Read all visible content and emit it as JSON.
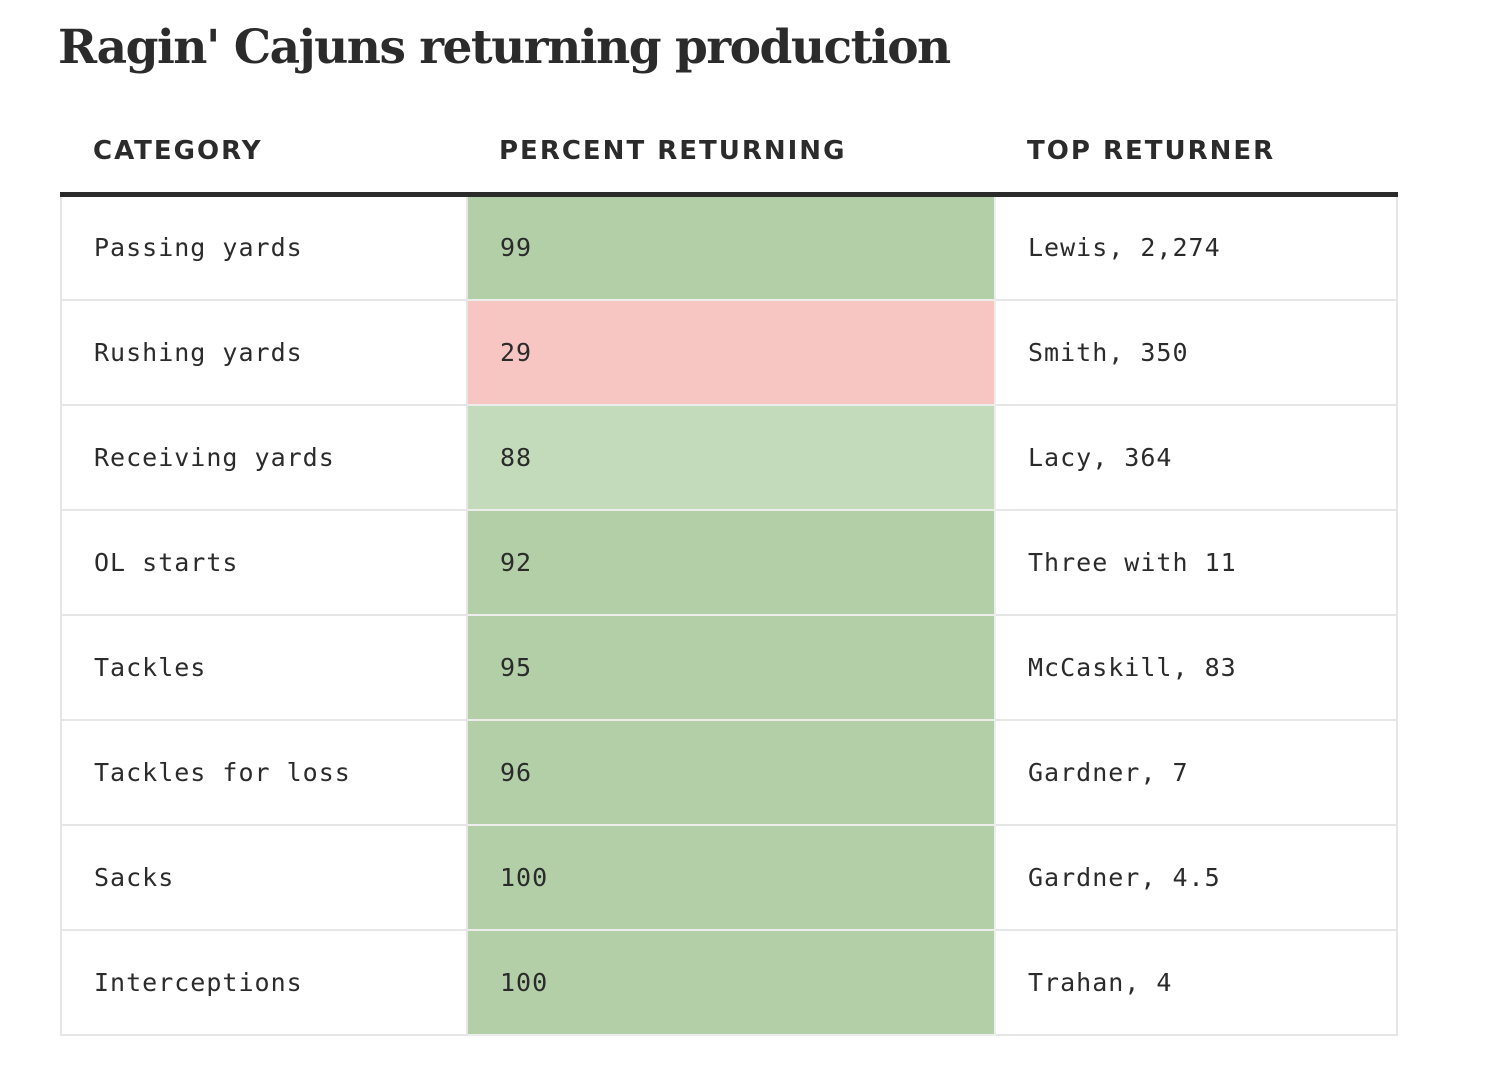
{
  "title": "Ragin' Cajuns returning production",
  "chart_data": {
    "type": "table",
    "title": "Ragin' Cajuns returning production",
    "columns": [
      "CATEGORY",
      "PERCENT RETURNING",
      "TOP RETURNER"
    ],
    "rows": [
      {
        "category": "Passing yards",
        "percent": 99,
        "top": "Lewis, 2,274"
      },
      {
        "category": "Rushing yards",
        "percent": 29,
        "top": "Smith, 350"
      },
      {
        "category": "Receiving yards",
        "percent": 88,
        "top": "Lacy, 364"
      },
      {
        "category": "OL starts",
        "percent": 92,
        "top": "Three with 11"
      },
      {
        "category": "Tackles",
        "percent": 95,
        "top": "McCaskill, 83"
      },
      {
        "category": "Tackles for loss",
        "percent": 96,
        "top": "Gardner, 7"
      },
      {
        "category": "Sacks",
        "percent": 100,
        "top": "Gardner, 4.5"
      },
      {
        "category": "Interceptions",
        "percent": 100,
        "top": "Trahan, 4"
      }
    ],
    "colors": {
      "high": "#b3cfa8",
      "mid": "#c3dbbb",
      "low": "#f7c6c3"
    }
  }
}
